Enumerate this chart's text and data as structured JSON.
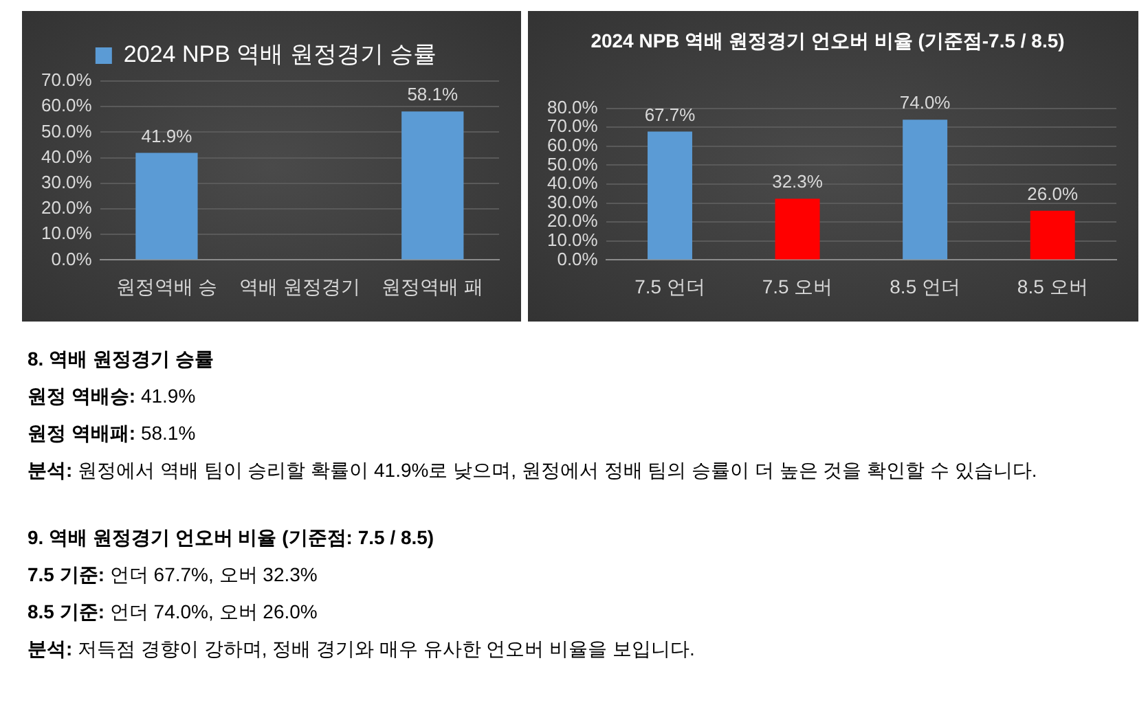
{
  "chart_data": [
    {
      "type": "bar",
      "categories": [
        "원정역배 승",
        "역배 원정경기",
        "원정역배 패"
      ],
      "series": [
        {
          "name": "2024 NPB 역배 원정경기 승률",
          "color": "#5b9bd5",
          "values": [
            41.9,
            null,
            58.1
          ],
          "value_labels": [
            "41.9%",
            null,
            "58.1%"
          ]
        }
      ],
      "ylim": [
        0,
        70
      ],
      "yticks": [
        {
          "value": 0,
          "label": "0.0%"
        },
        {
          "value": 10,
          "label": "10.0%"
        },
        {
          "value": 20,
          "label": "20.0%"
        },
        {
          "value": 30,
          "label": "30.0%"
        },
        {
          "value": 40,
          "label": "40.0%"
        },
        {
          "value": 50,
          "label": "50.0%"
        },
        {
          "value": 60,
          "label": "60.0%"
        },
        {
          "value": 70,
          "label": "70.0%"
        }
      ],
      "grid": "y",
      "legend": "top",
      "annotations": [
        "8. 역배 원정경기 승률",
        "원정 역배승: 41.9%",
        "원정 역배패: 58.1%",
        "분석: 원정에서 역배 팀이 승리할 확률이 41.9%로 낮으며, 원정에서 정배 팀의 승률이 더 높은 것을 확인할 수 있습니다."
      ]
    },
    {
      "type": "bar",
      "title": "2024 NPB 역배 원정경기 언오버 비율 (기준점-7.5 / 8.5)",
      "categories": [
        "7.5 언더",
        "7.5 오버",
        "8.5 언더",
        "8.5 오버"
      ],
      "values": [
        67.7,
        32.3,
        74.0,
        26.0
      ],
      "colors": [
        "#5b9bd5",
        "#ff0000",
        "#5b9bd5",
        "#ff0000"
      ],
      "value_labels": [
        "67.7%",
        "32.3%",
        "74.0%",
        "26.0%"
      ],
      "ylim": [
        0,
        80
      ],
      "yticks": [
        {
          "value": 0,
          "label": "0.0%"
        },
        {
          "value": 10,
          "label": "10.0%"
        },
        {
          "value": 20,
          "label": "20.0%"
        },
        {
          "value": 30,
          "label": "30.0%"
        },
        {
          "value": 40,
          "label": "40.0%"
        },
        {
          "value": 50,
          "label": "50.0%"
        },
        {
          "value": 60,
          "label": "60.0%"
        },
        {
          "value": 70,
          "label": "70.0%"
        },
        {
          "value": 80,
          "label": "80.0%"
        }
      ],
      "grid": "y",
      "annotations": [
        "9. 역배 원정경기 언오버 비율 (기준점: 7.5 / 8.5)",
        "7.5 기준: 언더 67.7%, 오버 32.3%",
        "8.5 기준: 언더 74.0%, 오버 26.0%",
        "분석: 저득점 경향이 강하며, 정배 경기와 매우 유사한 언오버 비율을 보입니다."
      ]
    }
  ]
}
